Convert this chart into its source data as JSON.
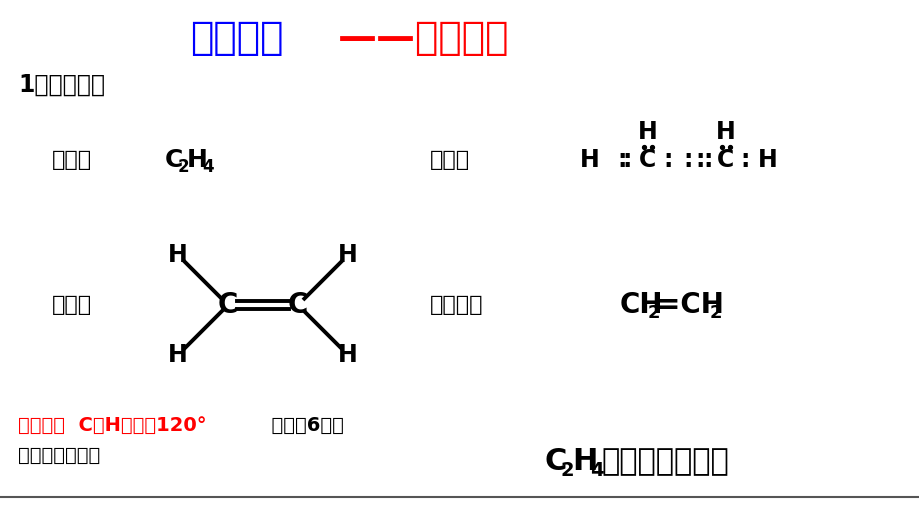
{
  "bg_color": "#ffffff",
  "title_blue": "一、乙烯",
  "title_red": "——不饱和烃",
  "section": "1、分子结构",
  "mol_label": "分子式",
  "elec_label": "电子式",
  "struct_label": "结构式",
  "simple_label": "结构简式",
  "bottom_red": "平面结构  C－H键夹角120°",
  "bottom_black": "  分子中6原子",
  "bottom_line2": "都在同一平面上",
  "bottom_right_text": "是最简单的烯烃",
  "sep_color": "#555555"
}
